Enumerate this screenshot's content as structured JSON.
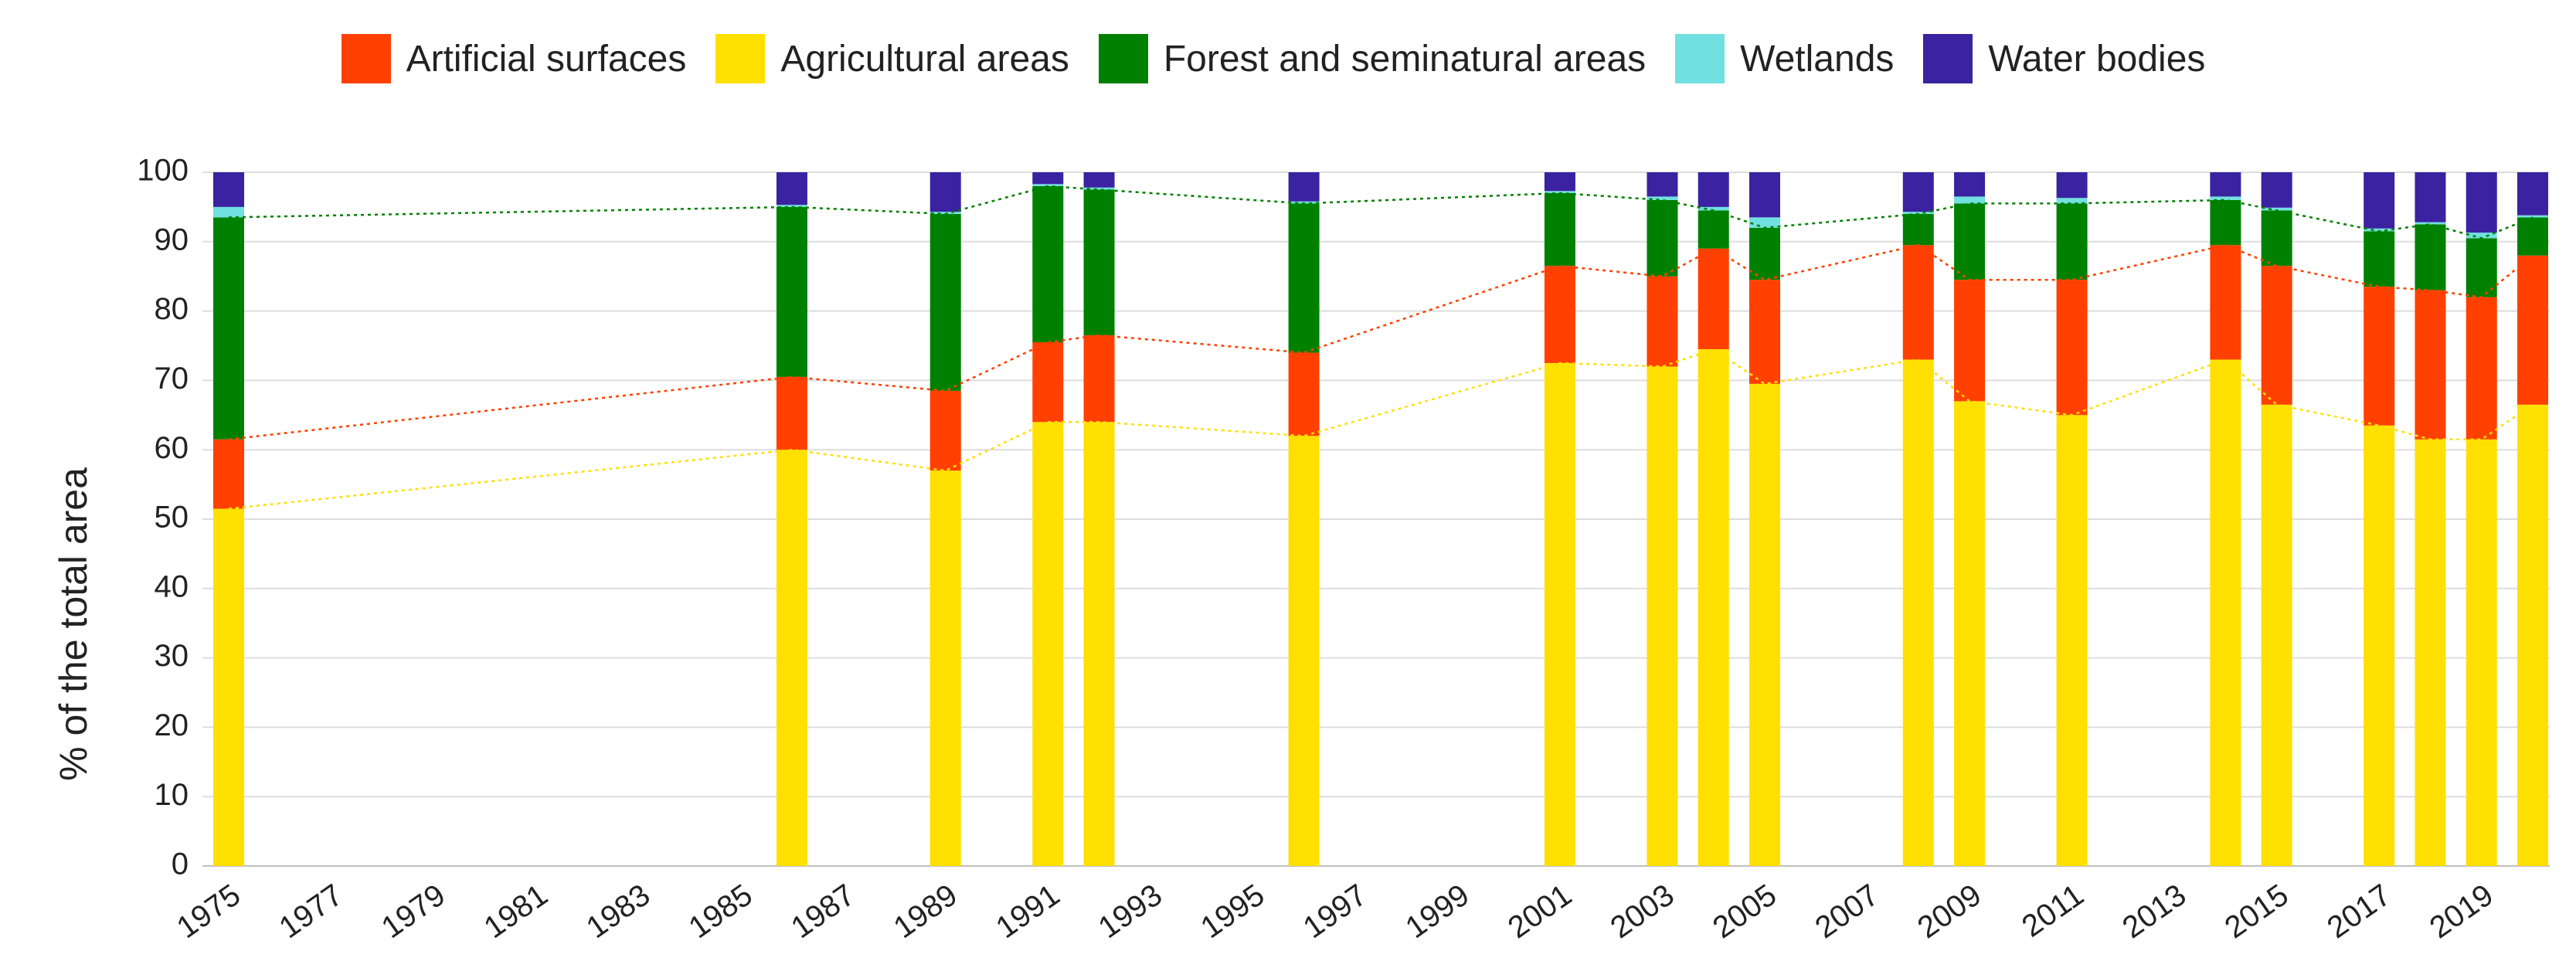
{
  "chart_data": {
    "type": "bar",
    "stacked": true,
    "ylabel": "% of the total area",
    "xlabel": "",
    "ylim": [
      0,
      100
    ],
    "yticks": [
      0,
      10,
      20,
      30,
      40,
      50,
      60,
      70,
      80,
      90,
      100
    ],
    "xticks": [
      "1975",
      "1977",
      "1979",
      "1981",
      "1983",
      "1985",
      "1987",
      "1989",
      "1991",
      "1993",
      "1995",
      "1997",
      "1999",
      "2001",
      "2003",
      "2005",
      "2007",
      "2009",
      "2011",
      "2013",
      "2015",
      "2017",
      "2019"
    ],
    "x_range": [
      1975,
      2020
    ],
    "grid": "horizontal",
    "legend_position": "top",
    "years": [
      1975,
      1986,
      1989,
      1991,
      1992,
      1996,
      2001,
      2003,
      2004,
      2005,
      2008,
      2009,
      2011,
      2014,
      2015,
      2017,
      2018,
      2019,
      2020
    ],
    "series": [
      {
        "name": "Agricultural areas",
        "color": "#FFE000",
        "values": [
          51.5,
          60,
          57,
          64,
          64,
          62,
          72.5,
          72,
          74.5,
          69.5,
          73,
          67,
          65,
          73,
          66.5,
          63.5,
          61.5,
          61.5,
          66.5
        ]
      },
      {
        "name": "Artificial surfaces",
        "color": "#FF4000",
        "values": [
          10,
          10.5,
          11.5,
          11.5,
          12.5,
          12,
          14,
          13,
          14.5,
          15,
          16.5,
          17.5,
          19.5,
          16.5,
          20,
          20,
          21.5,
          20.5,
          21.5
        ]
      },
      {
        "name": "Forest and seminatural areas",
        "color": "#008000",
        "values": [
          32,
          24.5,
          25.5,
          22.5,
          21,
          21.5,
          10.5,
          11,
          5.5,
          7.5,
          4.5,
          11,
          11,
          6.5,
          8,
          8,
          9.5,
          8.5,
          5.5
        ]
      },
      {
        "name": "Wetlands",
        "color": "#70E0E0",
        "values": [
          1.5,
          0.3,
          0.3,
          0.3,
          0.3,
          0.3,
          0.3,
          0.5,
          0.5,
          1.5,
          0.3,
          1,
          0.8,
          0.5,
          0.4,
          0.4,
          0.3,
          0.8,
          0.3
        ]
      },
      {
        "name": "Water bodies",
        "color": "#3A22A0",
        "values": [
          5,
          4.7,
          5.7,
          1.7,
          2.2,
          4.2,
          2.7,
          3.5,
          5,
          6.5,
          5.7,
          3.5,
          3.7,
          3.5,
          5.1,
          8.1,
          7.2,
          8.7,
          6.2
        ]
      }
    ]
  },
  "legend": {
    "items": [
      {
        "label": "Artificial surfaces",
        "color": "#FF4000"
      },
      {
        "label": "Agricultural areas",
        "color": "#FFE000"
      },
      {
        "label": "Forest and seminatural areas",
        "color": "#008000"
      },
      {
        "label": "Wetlands",
        "color": "#70E0E0"
      },
      {
        "label": "Water bodies",
        "color": "#3A22A0"
      }
    ]
  }
}
